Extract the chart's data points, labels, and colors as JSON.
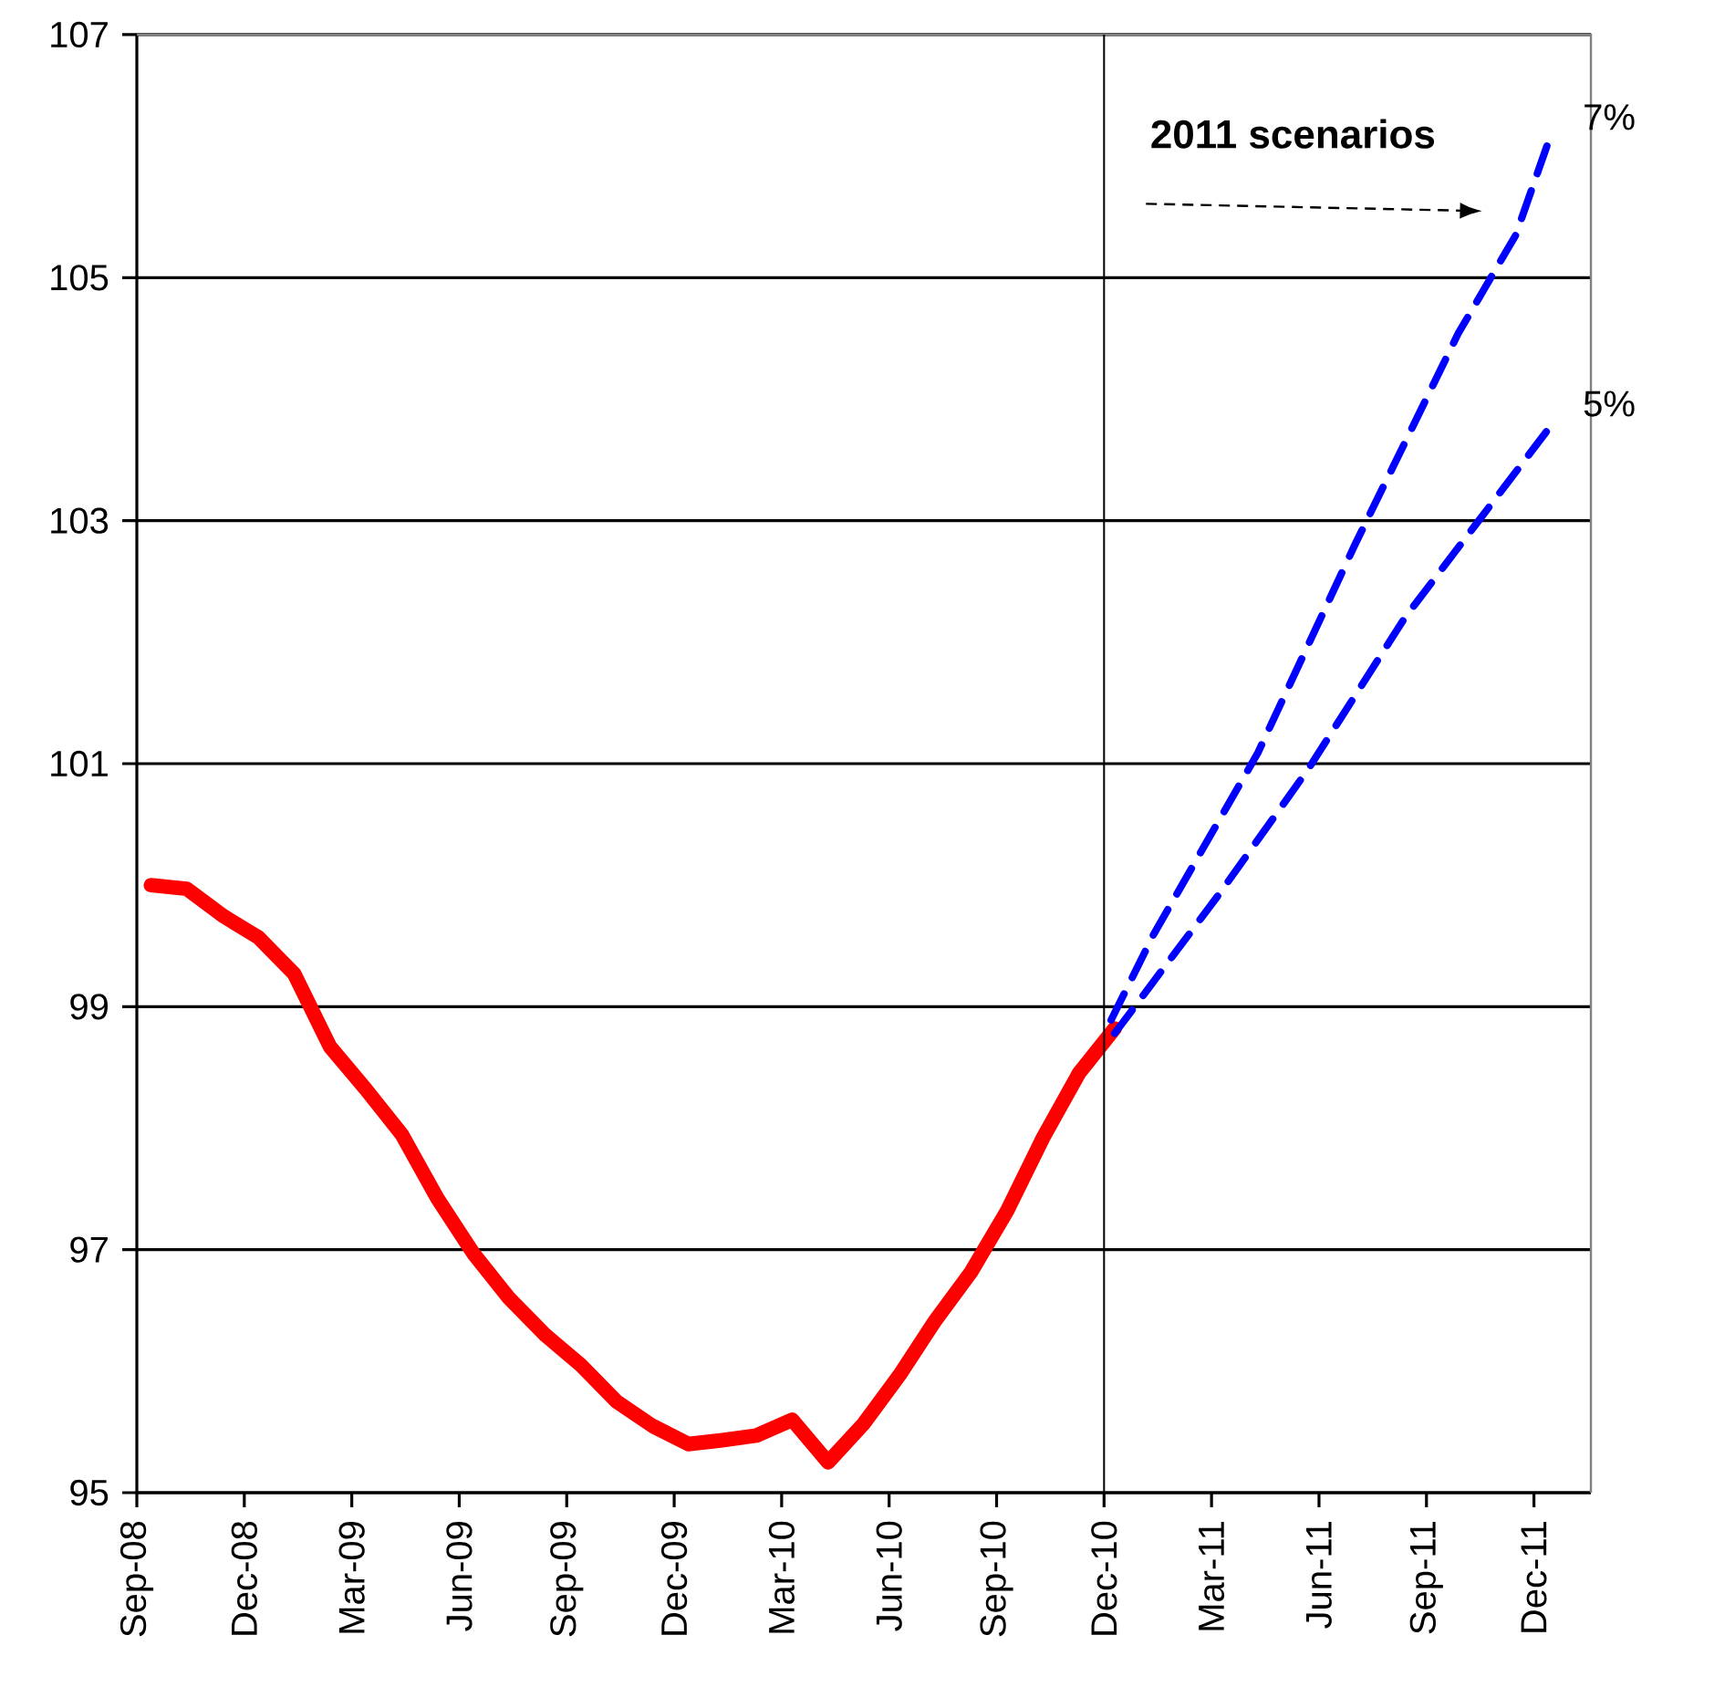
{
  "chart_data": {
    "type": "line",
    "series": [
      {
        "color": "#ff0000",
        "line_style": "solid",
        "x": [
          "2008-09-13",
          "2008-10-13",
          "2008-11-13",
          "2008-12-13",
          "2009-01-13",
          "2009-02-13",
          "2009-03-13",
          "2009-04-13",
          "2009-05-13",
          "2009-06-13",
          "2009-07-13",
          "2009-08-13",
          "2009-09-13",
          "2009-10-13",
          "2009-11-13",
          "2009-12-13",
          "2010-01-10",
          "2010-02-10",
          "2010-03-10",
          "2010-04-10",
          "2010-05-10",
          "2010-06-10",
          "2010-07-10",
          "2010-08-10",
          "2010-09-10",
          "2010-10-10",
          "2010-11-10",
          "2010-12-10"
        ],
        "values": [
          100.0,
          99.97,
          99.75,
          99.57,
          99.27,
          98.67,
          98.32,
          97.95,
          97.42,
          96.97,
          96.6,
          96.3,
          96.05,
          95.75,
          95.55,
          95.4,
          95.43,
          95.47,
          95.6,
          95.25,
          95.57,
          95.97,
          96.42,
          96.82,
          97.32,
          97.92,
          98.45,
          98.82
        ]
      },
      {
        "name": "7%",
        "color": "#0000ff",
        "line_style": "dashed",
        "x": [
          "2010-12-07",
          "2011-01-13",
          "2011-04-10",
          "2011-07-01",
          "2011-09-28",
          "2011-11-16",
          "2011-12-13"
        ],
        "values": [
          98.89,
          99.6,
          101.09,
          102.8,
          104.54,
          105.35,
          106.11
        ]
      },
      {
        "name": "5%",
        "color": "#0000ff",
        "line_style": "dashed",
        "x": [
          "2010-12-10",
          "2011-03-07",
          "2011-05-22",
          "2011-08-13",
          "2011-12-13"
        ],
        "values": [
          98.78,
          99.92,
          100.95,
          102.2,
          103.75
        ]
      }
    ],
    "xlim": [
      "2008-09",
      "2012-01-19"
    ],
    "xticks": [
      {
        "value": "2008-09",
        "label": "Sep-08"
      },
      {
        "value": "2008-12",
        "label": "Dec-08"
      },
      {
        "value": "2009-03",
        "label": "Mar-09"
      },
      {
        "value": "2009-06",
        "label": "Jun-09"
      },
      {
        "value": "2009-09",
        "label": "Sep-09"
      },
      {
        "value": "2009-12",
        "label": "Dec-09"
      },
      {
        "value": "2010-03",
        "label": "Mar-10"
      },
      {
        "value": "2010-06",
        "label": "Jun-10"
      },
      {
        "value": "2010-09",
        "label": "Sep-10"
      },
      {
        "value": "2010-12",
        "label": "Dec-10"
      },
      {
        "value": "2011-03",
        "label": "Mar-11"
      },
      {
        "value": "2011-06",
        "label": "Jun-11"
      },
      {
        "value": "2011-09",
        "label": "Sep-11"
      },
      {
        "value": "2011-12",
        "label": "Dec-11"
      }
    ],
    "ylim": [
      95,
      107
    ],
    "yticks": [
      95,
      97,
      99,
      101,
      103,
      105,
      107
    ],
    "grid": "y",
    "marker": "none",
    "ref_lines": [
      {
        "axis": "x",
        "value": "2010-12",
        "color": "#000000"
      }
    ],
    "annotations": [
      "**2011 scenarios**"
    ]
  }
}
